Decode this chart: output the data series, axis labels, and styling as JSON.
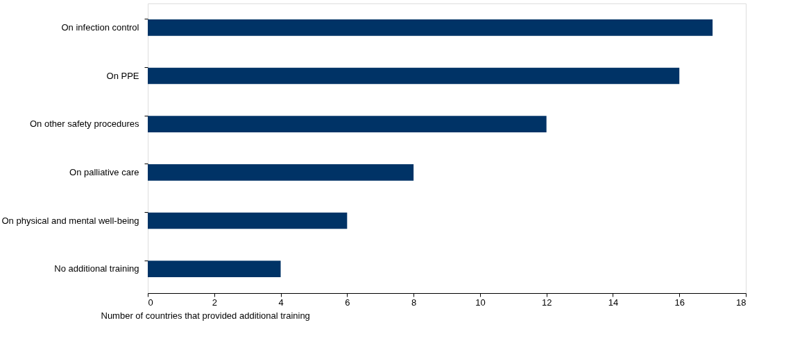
{
  "chart_data": {
    "type": "bar",
    "orientation": "horizontal",
    "xlabel": "Number of countries that provided additional training",
    "categories": [
      "On infection control",
      "On PPE",
      "On other safety procedures",
      "On palliative care",
      "On physical and mental well-being",
      "No additional training"
    ],
    "values": [
      17,
      16,
      12,
      8,
      6,
      4
    ],
    "color": "#003366",
    "xlim": [
      0,
      18
    ],
    "xticks": [
      0,
      2,
      4,
      6,
      8,
      10,
      12,
      14,
      16,
      18
    ],
    "grid": false
  }
}
